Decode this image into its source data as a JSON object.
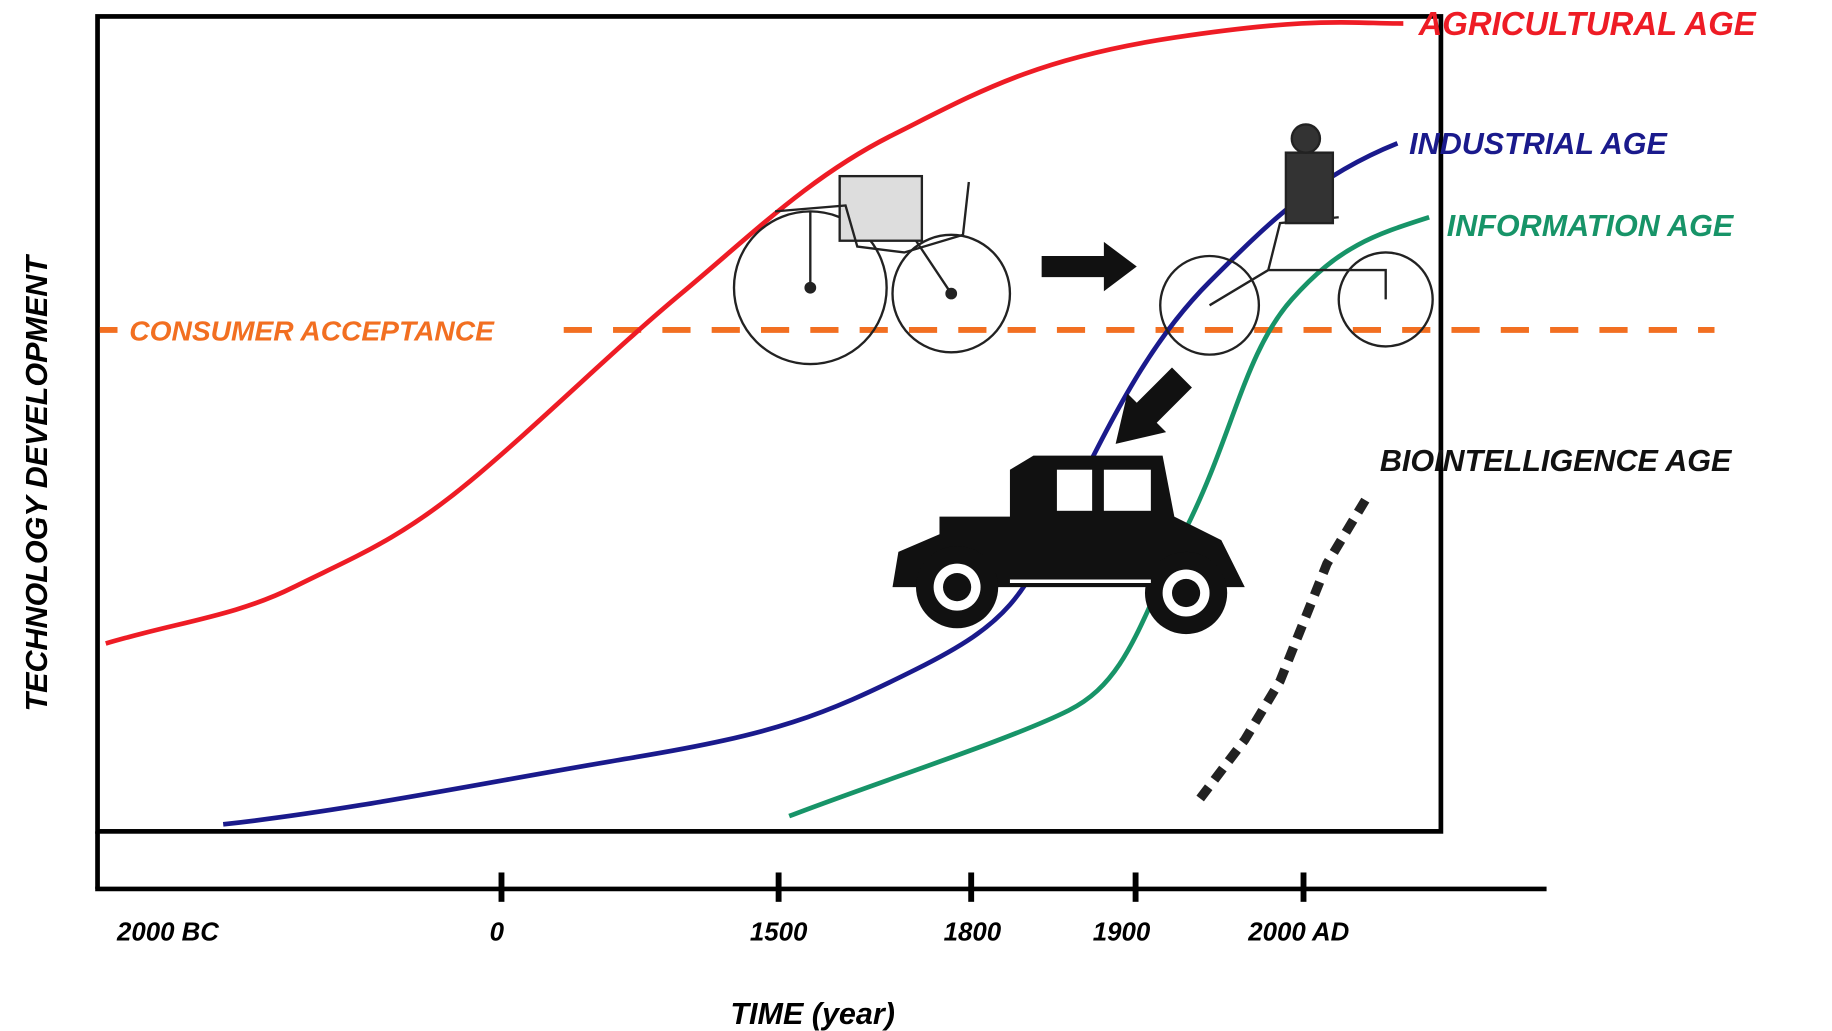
{
  "axes": {
    "y_label": "TECHNOLOGY DEVELOPMENT",
    "x_label": "TIME (year)",
    "x_ticks": [
      "2000 BC",
      "0",
      "1500",
      "1800",
      "1900",
      "2000 AD"
    ]
  },
  "threshold": {
    "label": "CONSUMER ACCEPTANCE"
  },
  "curves": [
    {
      "label": "AGRICULTURAL AGE"
    },
    {
      "label": "INDUSTRIAL AGE"
    },
    {
      "label": "INFORMATION AGE"
    },
    {
      "label": "BIOINTELLIGENCE AGE"
    }
  ]
}
